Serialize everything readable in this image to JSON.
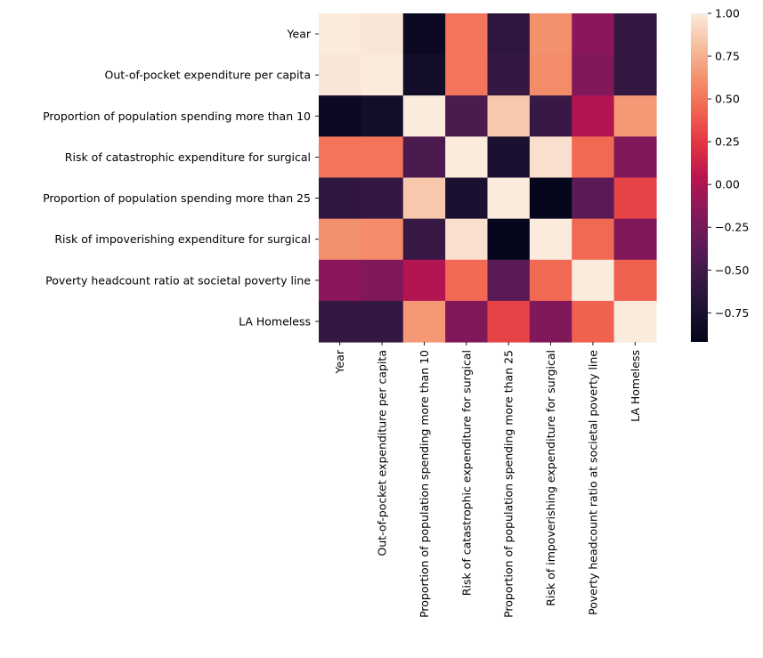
{
  "chart_data": {
    "type": "heatmap",
    "title": "",
    "xlabel": "",
    "ylabel": "",
    "rows": [
      "Year",
      "Out-of-pocket expenditure per capita",
      "Proportion of population spending more than 10",
      "Risk of catastrophic expenditure for surgical",
      "Proportion of population spending more than 25",
      "Risk of impoverishing expenditure for surgical",
      "Poverty headcount ratio at societal poverty line",
      "LA Homeless"
    ],
    "columns": [
      "Year",
      "Out-of-pocket expenditure per capita",
      "Proportion of population spending more than 10",
      "Risk of catastrophic expenditure for surgical",
      "Proportion of population spending more than 25",
      "Risk of impoverishing expenditure for surgical",
      "Poverty headcount ratio at societal poverty line",
      "LA Homeless"
    ],
    "values": [
      [
        1.0,
        0.98,
        -0.85,
        0.5,
        -0.62,
        0.62,
        -0.15,
        -0.58
      ],
      [
        0.98,
        1.0,
        -0.8,
        0.5,
        -0.58,
        0.6,
        -0.2,
        -0.58
      ],
      [
        -0.85,
        -0.8,
        1.0,
        -0.45,
        0.85,
        -0.55,
        0.02,
        0.65
      ],
      [
        0.5,
        0.5,
        -0.45,
        1.0,
        -0.75,
        0.95,
        0.45,
        -0.2
      ],
      [
        -0.62,
        -0.58,
        0.85,
        -0.75,
        1.0,
        -0.9,
        -0.38,
        0.3
      ],
      [
        0.62,
        0.6,
        -0.55,
        0.95,
        -0.9,
        1.0,
        0.45,
        -0.2
      ],
      [
        -0.15,
        -0.2,
        0.02,
        0.45,
        -0.38,
        0.45,
        1.0,
        0.42
      ],
      [
        -0.58,
        -0.58,
        0.65,
        -0.2,
        0.3,
        -0.2,
        0.42,
        1.0
      ]
    ],
    "vmin": -0.92,
    "vmax": 1.0,
    "colormap": "rocket",
    "colorbar": {
      "ticks": [
        1.0,
        0.75,
        0.5,
        0.25,
        0.0,
        -0.25,
        -0.5,
        -0.75
      ],
      "tick_labels": [
        "1.00",
        "0.75",
        "0.50",
        "0.25",
        "0.00",
        "−0.25",
        "−0.50",
        "−0.75"
      ]
    },
    "grid": false,
    "legend": "colorbar-right"
  }
}
